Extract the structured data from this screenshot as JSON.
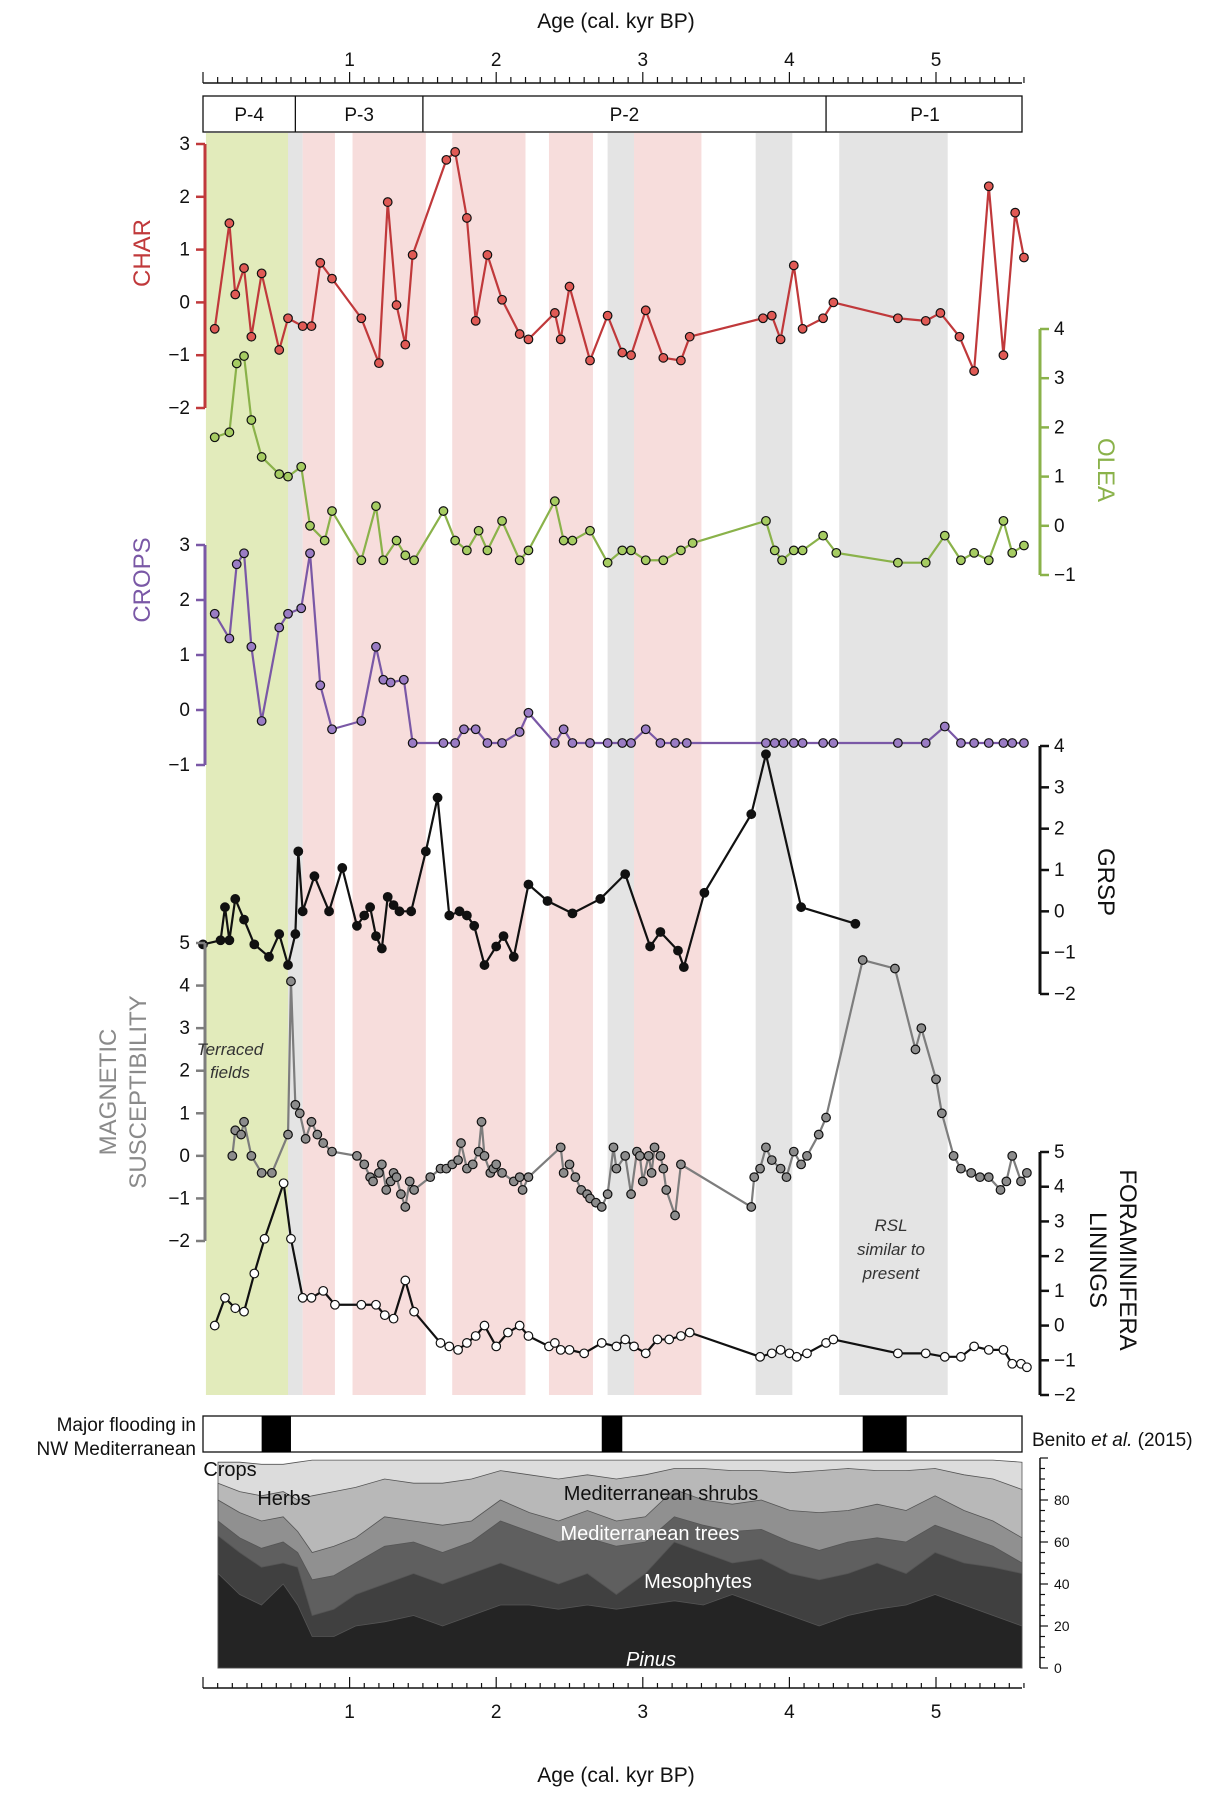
{
  "axis": {
    "top_title": "Age (cal. kyr BP)",
    "bottom_title": "Age (cal. kyr BP)",
    "ticks": [
      "1",
      "2",
      "3",
      "4",
      "5"
    ]
  },
  "zones": [
    {
      "label": "P-4",
      "from": 0.0,
      "to": 0.63
    },
    {
      "label": "P-3",
      "from": 0.63,
      "to": 1.5
    },
    {
      "label": "P-2",
      "from": 1.5,
      "to": 4.25
    },
    {
      "label": "P-1",
      "from": 4.25,
      "to": 5.6
    }
  ],
  "shading": {
    "green": [
      [
        0.02,
        0.58
      ]
    ],
    "pink": [
      [
        0.68,
        0.9
      ],
      [
        1.02,
        1.52
      ],
      [
        1.7,
        2.2
      ],
      [
        2.36,
        2.66
      ],
      [
        2.94,
        3.4
      ]
    ],
    "grey": [
      [
        0.58,
        0.68
      ],
      [
        2.76,
        2.94
      ],
      [
        3.77,
        4.02
      ],
      [
        4.34,
        5.08
      ]
    ]
  },
  "annotations": {
    "terraced": [
      "Terraced",
      "fields"
    ],
    "rsl": [
      "RSL",
      "similar to",
      "present"
    ]
  },
  "flooding": {
    "label": [
      "Major flooding in",
      "NW Mediterranean"
    ],
    "source_author": "Benito",
    "source_etal": "et al.",
    "source_year": "(2015)",
    "events": [
      [
        0.4,
        0.6
      ],
      [
        2.72,
        2.86
      ],
      [
        4.5,
        4.8
      ]
    ]
  },
  "pollen": {
    "labels": {
      "crops": "Crops",
      "herbs": "Herbs",
      "shrubs": "Mediterranean shrubs",
      "trees": "Mediterranean trees",
      "meso": "Mesophytes",
      "pinus": "Pinus"
    },
    "yticks": [
      "0",
      "20",
      "40",
      "60",
      "80"
    ]
  },
  "chart_data": [
    {
      "type": "line",
      "name": "CHAR",
      "color": "#c0393b",
      "marker": "#e05a55",
      "ylim": [
        -2,
        3
      ],
      "yticks": [
        "3",
        "2",
        "1",
        "0",
        "−1",
        "−2"
      ],
      "x": [
        0.08,
        0.18,
        0.22,
        0.28,
        0.33,
        0.4,
        0.52,
        0.58,
        0.68,
        0.74,
        0.8,
        0.88,
        1.08,
        1.2,
        1.26,
        1.32,
        1.38,
        1.43,
        1.66,
        1.72,
        1.8,
        1.86,
        1.94,
        2.04,
        2.16,
        2.22,
        2.4,
        2.44,
        2.5,
        2.64,
        2.76,
        2.86,
        2.92,
        3.02,
        3.14,
        3.26,
        3.32,
        3.82,
        3.88,
        3.94,
        4.03,
        4.09,
        4.23,
        4.3,
        4.74,
        4.93,
        5.03,
        5.16,
        5.26,
        5.36,
        5.46,
        5.54,
        5.6
      ],
      "y": [
        -0.5,
        1.5,
        0.15,
        0.65,
        -0.65,
        0.55,
        -0.9,
        -0.3,
        -0.45,
        -0.45,
        0.75,
        0.45,
        -0.3,
        -1.15,
        1.9,
        -0.05,
        -0.8,
        0.9,
        2.7,
        2.85,
        1.6,
        -0.35,
        0.9,
        0.05,
        -0.6,
        -0.7,
        -0.2,
        -0.7,
        0.3,
        -1.1,
        -0.25,
        -0.95,
        -1.0,
        -0.15,
        -1.05,
        -1.1,
        -0.65,
        -0.3,
        -0.25,
        -0.7,
        0.7,
        -0.5,
        -0.3,
        0.0,
        -0.3,
        -0.35,
        -0.2,
        -0.65,
        -1.3,
        2.2,
        -1.0,
        1.7,
        0.85
      ]
    },
    {
      "type": "line",
      "name": "OLEA",
      "color": "#8ab24a",
      "marker": "#a6cc62",
      "ylim": [
        -1,
        4
      ],
      "yticks": [
        "4",
        "3",
        "2",
        "1",
        "0",
        "−1"
      ],
      "x": [
        0.08,
        0.18,
        0.23,
        0.28,
        0.33,
        0.4,
        0.52,
        0.58,
        0.67,
        0.73,
        0.83,
        0.88,
        1.08,
        1.18,
        1.23,
        1.32,
        1.38,
        1.44,
        1.64,
        1.72,
        1.8,
        1.88,
        1.94,
        2.04,
        2.16,
        2.22,
        2.4,
        2.46,
        2.52,
        2.64,
        2.76,
        2.86,
        2.92,
        3.02,
        3.14,
        3.26,
        3.34,
        3.84,
        3.9,
        3.95,
        4.03,
        4.09,
        4.23,
        4.32,
        4.74,
        4.93,
        5.06,
        5.17,
        5.26,
        5.36,
        5.46,
        5.52,
        5.6
      ],
      "y": [
        1.8,
        1.9,
        3.3,
        3.45,
        2.15,
        1.4,
        1.05,
        1.0,
        1.2,
        0.0,
        -0.3,
        0.3,
        -0.7,
        0.4,
        -0.7,
        -0.3,
        -0.6,
        -0.7,
        0.3,
        -0.3,
        -0.5,
        -0.1,
        -0.5,
        0.1,
        -0.7,
        -0.5,
        0.5,
        -0.3,
        -0.3,
        -0.1,
        -0.75,
        -0.5,
        -0.5,
        -0.7,
        -0.7,
        -0.5,
        -0.35,
        0.1,
        -0.5,
        -0.7,
        -0.5,
        -0.5,
        -0.2,
        -0.55,
        -0.75,
        -0.75,
        -0.2,
        -0.7,
        -0.55,
        -0.7,
        0.1,
        -0.55,
        -0.4
      ]
    },
    {
      "type": "line",
      "name": "CROPS",
      "color": "#7a58a6",
      "marker": "#9a7cc4",
      "ylim": [
        -1,
        3
      ],
      "yticks": [
        "3",
        "2",
        "1",
        "0",
        "−1"
      ],
      "x": [
        0.08,
        0.18,
        0.23,
        0.28,
        0.33,
        0.4,
        0.52,
        0.58,
        0.67,
        0.73,
        0.8,
        0.88,
        1.08,
        1.18,
        1.23,
        1.28,
        1.37,
        1.43,
        1.64,
        1.72,
        1.78,
        1.86,
        1.94,
        2.04,
        2.16,
        2.22,
        2.4,
        2.46,
        2.52,
        2.64,
        2.76,
        2.86,
        2.92,
        3.02,
        3.12,
        3.22,
        3.3,
        3.84,
        3.9,
        3.96,
        4.03,
        4.09,
        4.23,
        4.3,
        4.74,
        4.93,
        5.06,
        5.17,
        5.26,
        5.36,
        5.46,
        5.52,
        5.6
      ],
      "y": [
        1.75,
        1.3,
        2.65,
        2.85,
        1.15,
        -0.2,
        1.5,
        1.75,
        1.85,
        2.85,
        0.45,
        -0.35,
        -0.2,
        1.15,
        0.55,
        0.5,
        0.55,
        -0.6,
        -0.6,
        -0.6,
        -0.35,
        -0.35,
        -0.6,
        -0.6,
        -0.4,
        -0.05,
        -0.6,
        -0.35,
        -0.6,
        -0.6,
        -0.6,
        -0.6,
        -0.6,
        -0.35,
        -0.6,
        -0.6,
        -0.6,
        -0.6,
        -0.6,
        -0.6,
        -0.6,
        -0.6,
        -0.6,
        -0.6,
        -0.6,
        -0.6,
        -0.3,
        -0.6,
        -0.6,
        -0.6,
        -0.6,
        -0.6,
        -0.6
      ]
    },
    {
      "type": "line",
      "name": "GRSP",
      "color": "#111111",
      "marker": "#111111",
      "ylim": [
        -2,
        4
      ],
      "yticks": [
        "4",
        "3",
        "2",
        "1",
        "0",
        "−1",
        "−2"
      ],
      "x": [
        0.0,
        0.12,
        0.15,
        0.18,
        0.22,
        0.28,
        0.35,
        0.45,
        0.52,
        0.58,
        0.63,
        0.65,
        0.68,
        0.76,
        0.86,
        0.95,
        1.05,
        1.1,
        1.14,
        1.18,
        1.22,
        1.26,
        1.3,
        1.34,
        1.42,
        1.52,
        1.6,
        1.68,
        1.75,
        1.8,
        1.85,
        1.92,
        2.0,
        2.05,
        2.12,
        2.22,
        2.35,
        2.52,
        2.71,
        2.88,
        3.05,
        3.12,
        3.24,
        3.28,
        3.42,
        3.74,
        3.84,
        4.08,
        4.45
      ],
      "y": [
        -0.8,
        -0.7,
        0.1,
        -0.7,
        0.3,
        -0.2,
        -0.8,
        -1.1,
        -0.55,
        -1.3,
        -0.55,
        1.45,
        0.0,
        0.85,
        0.0,
        1.05,
        -0.35,
        -0.1,
        0.1,
        -0.6,
        -0.9,
        0.35,
        0.15,
        0.0,
        0.0,
        1.45,
        2.75,
        -0.1,
        0.0,
        -0.1,
        -0.35,
        -1.3,
        -0.85,
        -0.6,
        -1.1,
        0.65,
        0.25,
        -0.05,
        0.3,
        0.9,
        -0.85,
        -0.5,
        -0.95,
        -1.35,
        0.45,
        2.35,
        3.8,
        0.1,
        -0.3
      ]
    },
    {
      "type": "line",
      "name": "MAGNETIC SUSCEPTIBILITY",
      "color": "#7d7d7d",
      "marker": "#8c8c8c",
      "ylim": [
        -2,
        5
      ],
      "yticks": [
        "5",
        "4",
        "3",
        "2",
        "1",
        "0",
        "−1",
        "−2"
      ],
      "x": [
        0.2,
        0.22,
        0.26,
        0.28,
        0.33,
        0.4,
        0.47,
        0.58,
        0.6,
        0.63,
        0.66,
        0.7,
        0.74,
        0.78,
        0.82,
        0.88,
        1.05,
        1.1,
        1.14,
        1.16,
        1.2,
        1.22,
        1.25,
        1.28,
        1.3,
        1.32,
        1.35,
        1.38,
        1.41,
        1.44,
        1.55,
        1.62,
        1.66,
        1.7,
        1.74,
        1.76,
        1.8,
        1.84,
        1.88,
        1.9,
        1.92,
        1.96,
        1.98,
        2.0,
        2.04,
        2.12,
        2.16,
        2.18,
        2.22,
        2.44,
        2.46,
        2.5,
        2.54,
        2.58,
        2.62,
        2.64,
        2.68,
        2.72,
        2.76,
        2.8,
        2.82,
        2.88,
        2.92,
        2.96,
        2.98,
        3.0,
        3.04,
        3.06,
        3.08,
        3.12,
        3.14,
        3.16,
        3.22,
        3.26,
        3.74,
        3.76,
        3.8,
        3.84,
        3.88,
        3.94,
        3.98,
        4.03,
        4.08,
        4.12,
        4.2,
        4.25,
        4.5,
        4.72,
        4.86,
        4.9,
        5.0,
        5.04,
        5.12,
        5.17,
        5.24,
        5.3,
        5.36,
        5.44,
        5.48,
        5.52,
        5.58,
        5.62
      ],
      "y": [
        0.0,
        0.6,
        0.5,
        0.8,
        0.0,
        -0.4,
        -0.4,
        0.5,
        4.1,
        1.2,
        1.0,
        0.4,
        0.8,
        0.5,
        0.3,
        0.1,
        0.0,
        -0.2,
        -0.5,
        -0.6,
        -0.4,
        -0.2,
        -0.8,
        -0.6,
        -0.4,
        -0.5,
        -0.9,
        -1.2,
        -0.6,
        -0.8,
        -0.5,
        -0.3,
        -0.3,
        -0.2,
        -0.1,
        0.3,
        -0.3,
        -0.2,
        0.1,
        0.8,
        0.0,
        -0.4,
        -0.3,
        -0.2,
        -0.4,
        -0.6,
        -0.5,
        -0.8,
        -0.5,
        0.2,
        -0.4,
        -0.2,
        -0.5,
        -0.8,
        -0.9,
        -1.0,
        -1.1,
        -1.2,
        -0.9,
        0.2,
        -0.3,
        0.0,
        -0.9,
        0.1,
        0.0,
        -0.6,
        0.0,
        -0.4,
        0.2,
        0.0,
        -0.3,
        -0.8,
        -1.4,
        -0.2,
        -1.2,
        -0.5,
        -0.3,
        0.2,
        -0.1,
        -0.3,
        -0.5,
        0.1,
        -0.2,
        0.0,
        0.5,
        0.9,
        4.6,
        4.4,
        2.5,
        3.0,
        1.8,
        1.0,
        0.0,
        -0.3,
        -0.4,
        -0.5,
        -0.5,
        -0.8,
        -0.6,
        0.0,
        -0.6,
        -0.4
      ]
    },
    {
      "type": "line",
      "name": "FORAMINIFERA LININGS",
      "color": "#111111",
      "marker": "#ffffff",
      "ylim": [
        -2,
        5
      ],
      "yticks": [
        "5",
        "4",
        "3",
        "2",
        "1",
        "0",
        "−1",
        "−2"
      ],
      "x": [
        0.08,
        0.15,
        0.22,
        0.28,
        0.35,
        0.42,
        0.55,
        0.6,
        0.68,
        0.74,
        0.82,
        0.9,
        1.08,
        1.18,
        1.24,
        1.3,
        1.38,
        1.44,
        1.62,
        1.68,
        1.74,
        1.8,
        1.86,
        1.92,
        2.0,
        2.08,
        2.16,
        2.22,
        2.36,
        2.4,
        2.44,
        2.5,
        2.6,
        2.72,
        2.82,
        2.88,
        2.94,
        3.02,
        3.1,
        3.18,
        3.26,
        3.32,
        3.8,
        3.88,
        3.94,
        4.0,
        4.05,
        4.12,
        4.25,
        4.3,
        4.74,
        4.93,
        5.06,
        5.17,
        5.26,
        5.36,
        5.46,
        5.52,
        5.58,
        5.62
      ],
      "y": [
        0.0,
        0.8,
        0.5,
        0.4,
        1.5,
        2.5,
        4.1,
        2.5,
        0.8,
        0.8,
        1.0,
        0.6,
        0.6,
        0.6,
        0.3,
        0.2,
        1.3,
        0.4,
        -0.5,
        -0.6,
        -0.7,
        -0.5,
        -0.3,
        0.0,
        -0.6,
        -0.2,
        0.0,
        -0.3,
        -0.6,
        -0.5,
        -0.7,
        -0.7,
        -0.8,
        -0.5,
        -0.6,
        -0.4,
        -0.6,
        -0.8,
        -0.4,
        -0.4,
        -0.3,
        -0.2,
        -0.9,
        -0.8,
        -0.7,
        -0.8,
        -0.9,
        -0.8,
        -0.5,
        -0.4,
        -0.8,
        -0.8,
        -0.9,
        -0.9,
        -0.6,
        -0.7,
        -0.7,
        -1.1,
        -1.1,
        -1.2
      ]
    },
    {
      "type": "area",
      "name": "Pollen",
      "ylim": [
        0,
        100
      ],
      "x": [
        0.05,
        0.2,
        0.35,
        0.5,
        0.6,
        0.7,
        0.85,
        1.0,
        1.2,
        1.4,
        1.6,
        1.8,
        2.0,
        2.2,
        2.4,
        2.6,
        2.8,
        3.0,
        3.2,
        3.4,
        3.6,
        3.8,
        4.0,
        4.2,
        4.4,
        4.6,
        4.8,
        5.0,
        5.2,
        5.4,
        5.6
      ],
      "series": [
        {
          "name": "Pinus",
          "color": "#242424",
          "values": [
            45,
            35,
            30,
            40,
            30,
            15,
            15,
            20,
            22,
            25,
            20,
            25,
            30,
            30,
            28,
            30,
            28,
            30,
            32,
            30,
            35,
            30,
            25,
            20,
            25,
            28,
            30,
            35,
            30,
            25,
            20
          ]
        },
        {
          "name": "Mesophytes",
          "color": "#404040",
          "values": [
            63,
            55,
            48,
            50,
            48,
            25,
            28,
            35,
            40,
            45,
            40,
            45,
            50,
            45,
            40,
            45,
            35,
            45,
            60,
            55,
            50,
            52,
            45,
            42,
            45,
            50,
            45,
            55,
            50,
            48,
            45
          ]
        },
        {
          "name": "Mediterranean trees",
          "color": "#5f5f5f",
          "values": [
            70,
            62,
            57,
            60,
            55,
            42,
            44,
            50,
            58,
            60,
            55,
            60,
            70,
            65,
            60,
            62,
            58,
            60,
            72,
            68,
            65,
            66,
            60,
            56,
            60,
            62,
            60,
            68,
            63,
            58,
            50
          ]
        },
        {
          "name": "Mediterranean shrubs",
          "color": "#909090",
          "values": [
            80,
            74,
            70,
            72,
            65,
            55,
            58,
            62,
            72,
            70,
            68,
            70,
            80,
            74,
            70,
            75,
            70,
            72,
            85,
            80,
            78,
            80,
            75,
            74,
            75,
            78,
            75,
            82,
            75,
            70,
            62
          ]
        },
        {
          "name": "Herbs",
          "color": "#b8b8b8",
          "values": [
            88,
            84,
            82,
            84,
            80,
            82,
            84,
            86,
            90,
            88,
            88,
            90,
            94,
            92,
            90,
            92,
            90,
            92,
            95,
            95,
            94,
            94,
            93,
            94,
            95,
            94,
            94,
            95,
            92,
            90,
            85
          ]
        },
        {
          "name": "Crops",
          "color": "#dcdcdc",
          "values": [
            98,
            98,
            97,
            97,
            98,
            99,
            99,
            99,
            99,
            99,
            99,
            99,
            99,
            99,
            99,
            99,
            99,
            99,
            99,
            99,
            99,
            99,
            99,
            99,
            99,
            99,
            99,
            99,
            99,
            99,
            98
          ]
        }
      ]
    }
  ]
}
